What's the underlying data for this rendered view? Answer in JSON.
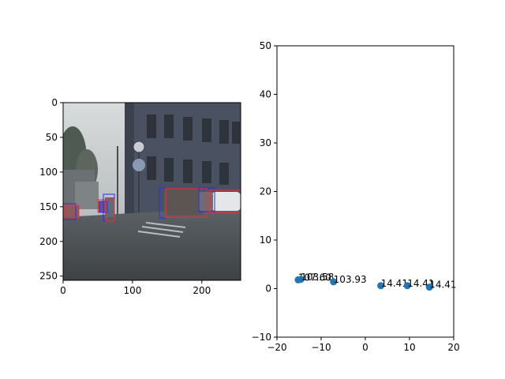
{
  "chart_data": [
    {
      "type": "image",
      "xlim": [
        0,
        256
      ],
      "ylim": [
        256,
        0
      ],
      "xticks": [
        "0",
        "100",
        "200"
      ],
      "yticks": [
        "0",
        "50",
        "100",
        "150",
        "200",
        "250"
      ],
      "content": "street-scene-with-bounding-boxes"
    },
    {
      "type": "scatter",
      "xlim": [
        -20,
        20
      ],
      "ylim": [
        -10,
        50
      ],
      "xticks": [
        "−20",
        "−10",
        "0",
        "10",
        "20"
      ],
      "yticks": [
        "−10",
        "0",
        "10",
        "20",
        "30",
        "40",
        "50"
      ],
      "marker_color": "#1f77b4",
      "points": [
        {
          "x": -15.2,
          "y": 1.8,
          "label": "107.60"
        },
        {
          "x": -14.6,
          "y": 1.9,
          "label": "103.58"
        },
        {
          "x": -7.2,
          "y": 1.4,
          "label": "103.93"
        },
        {
          "x": 3.5,
          "y": 0.6,
          "label": "14.41"
        },
        {
          "x": 9.5,
          "y": 0.6,
          "label": "14.41"
        },
        {
          "x": 14.5,
          "y": 0.3,
          "label": "14.41"
        }
      ]
    }
  ]
}
